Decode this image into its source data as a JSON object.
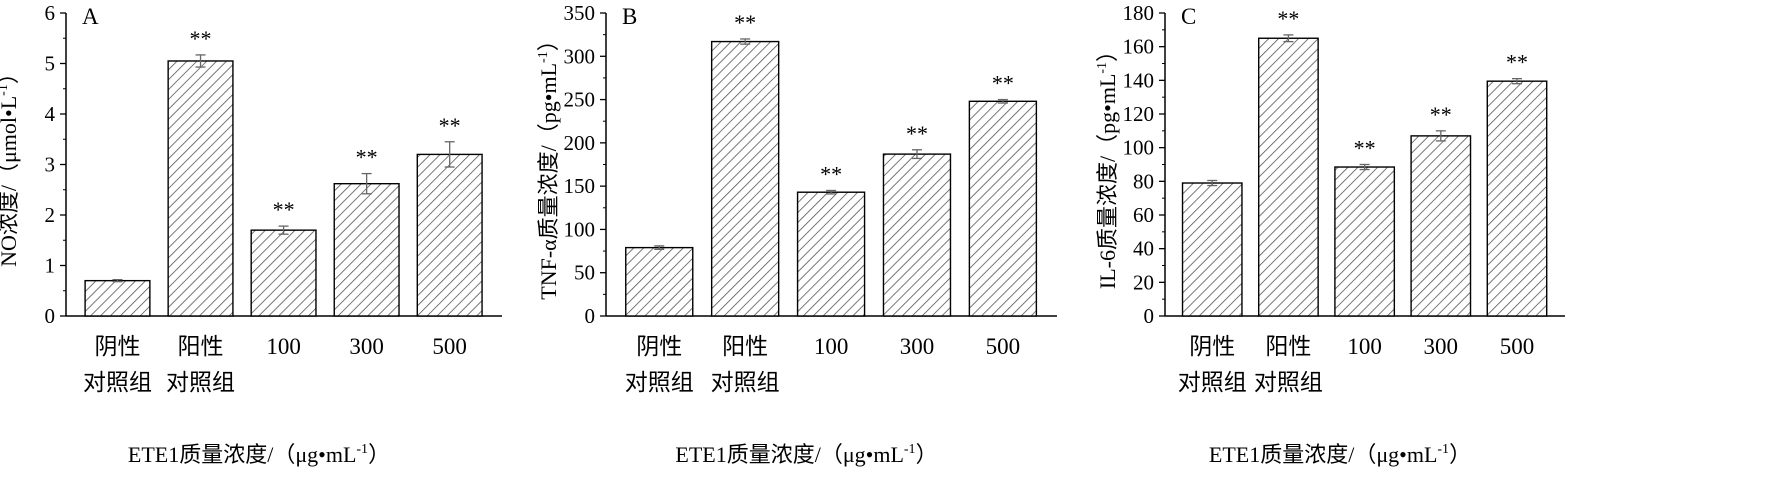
{
  "chart_data": [
    {
      "type": "bar",
      "panel_label": "A",
      "categories": [
        [
          "阴性",
          "对照组"
        ],
        [
          "阳性",
          "对照组"
        ],
        [
          "100"
        ],
        [
          "300"
        ],
        [
          "500"
        ]
      ],
      "values": [
        0.7,
        5.05,
        1.7,
        2.62,
        3.2
      ],
      "errors": [
        0.02,
        0.12,
        0.08,
        0.2,
        0.25
      ],
      "annotations": [
        "",
        "**",
        "**",
        "**",
        "**"
      ],
      "ylabel_main": "NO浓度/（μmol•L",
      "ylabel_sup": "-1",
      "ylabel_end": "）",
      "xlabel_main": "ETE1质量浓度/（μg•mL",
      "xlabel_sup": "-1",
      "xlabel_end": "）",
      "ylim": [
        0,
        6
      ],
      "yticks": [
        0,
        1,
        2,
        3,
        4,
        5,
        6
      ]
    },
    {
      "type": "bar",
      "panel_label": "B",
      "categories": [
        [
          "阴性",
          "对照组"
        ],
        [
          "阳性",
          "对照组"
        ],
        [
          "100"
        ],
        [
          "300"
        ],
        [
          "500"
        ]
      ],
      "values": [
        79,
        317,
        143,
        187,
        248
      ],
      "errors": [
        2,
        3,
        2,
        5,
        2
      ],
      "annotations": [
        "",
        "**",
        "**",
        "**",
        "**"
      ],
      "ylabel_main": "TNF-α质量浓度/（pg•mL",
      "ylabel_sup": "-1",
      "ylabel_end": "）",
      "xlabel_main": "ETE1质量浓度/（μg•mL",
      "xlabel_sup": "-1",
      "xlabel_end": "）",
      "ylim": [
        0,
        350
      ],
      "yticks": [
        0,
        50,
        100,
        150,
        200,
        250,
        300,
        350
      ]
    },
    {
      "type": "bar",
      "panel_label": "C",
      "categories": [
        [
          "阴性",
          "对照组"
        ],
        [
          "阳性",
          "对照组"
        ],
        [
          "100"
        ],
        [
          "300"
        ],
        [
          "500"
        ]
      ],
      "values": [
        79,
        165,
        88.5,
        107,
        139.5
      ],
      "errors": [
        1.5,
        2,
        1.5,
        3,
        1.5
      ],
      "annotations": [
        "",
        "**",
        "**",
        "**",
        "**"
      ],
      "ylabel_main": "IL-6质量浓度/（pg•mL",
      "ylabel_sup": "-1",
      "ylabel_end": "）",
      "xlabel_main": "ETE1质量浓度/（μg•mL",
      "xlabel_sup": "-1",
      "xlabel_end": "）",
      "ylim": [
        0,
        180
      ],
      "yticks": [
        0,
        20,
        40,
        60,
        80,
        100,
        120,
        140,
        160,
        180
      ]
    }
  ]
}
